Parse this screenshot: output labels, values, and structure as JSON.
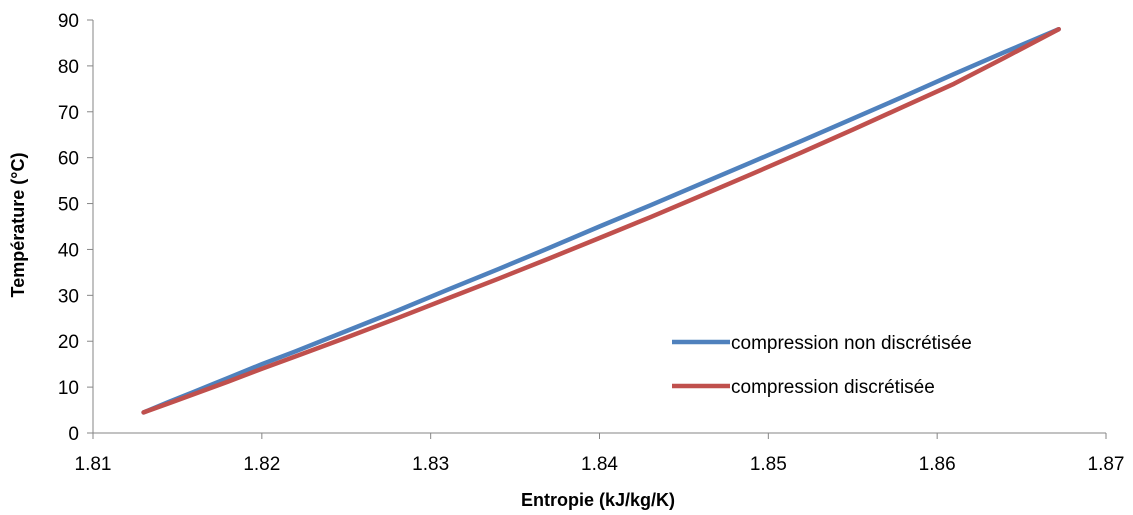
{
  "chart_data": {
    "type": "line",
    "title": "",
    "xlabel": "Entropie (kJ/kg/K)",
    "ylabel": "Température (°C)",
    "xlim": [
      1.81,
      1.87
    ],
    "ylim": [
      0,
      90
    ],
    "x_ticks": [
      "1.81",
      "1.82",
      "1.83",
      "1.84",
      "1.85",
      "1.86",
      "1.87"
    ],
    "y_ticks": [
      "0",
      "10",
      "20",
      "30",
      "40",
      "50",
      "60",
      "70",
      "80",
      "90"
    ],
    "grid": false,
    "legend_position": "right",
    "series": [
      {
        "name": "compression non discrétisée",
        "color": "#4F81BD",
        "x": [
          1.813,
          1.8145,
          1.816,
          1.818,
          1.82,
          1.822,
          1.825,
          1.828,
          1.831,
          1.834,
          1.837,
          1.84,
          1.843,
          1.846,
          1.849,
          1.852,
          1.855,
          1.858,
          1.861,
          1.864,
          1.8672
        ],
        "y": [
          4.5,
          6.8,
          9.0,
          12.0,
          15.0,
          17.8,
          22.2,
          26.6,
          31.2,
          35.7,
          40.3,
          45.0,
          49.6,
          54.3,
          59.0,
          63.7,
          68.5,
          73.3,
          78.2,
          83.0,
          88.0
        ]
      },
      {
        "name": "compression discrétisée",
        "color": "#C0504D",
        "x": [
          1.813,
          1.8145,
          1.816,
          1.818,
          1.82,
          1.822,
          1.825,
          1.828,
          1.831,
          1.834,
          1.837,
          1.84,
          1.843,
          1.846,
          1.849,
          1.852,
          1.855,
          1.858,
          1.861,
          1.864,
          1.8672
        ],
        "y": [
          4.5,
          6.5,
          8.5,
          11.2,
          14.0,
          16.7,
          20.8,
          25.0,
          29.3,
          33.6,
          38.0,
          42.5,
          47.0,
          51.7,
          56.4,
          61.2,
          66.1,
          71.1,
          76.1,
          81.8,
          88.0
        ]
      }
    ]
  }
}
